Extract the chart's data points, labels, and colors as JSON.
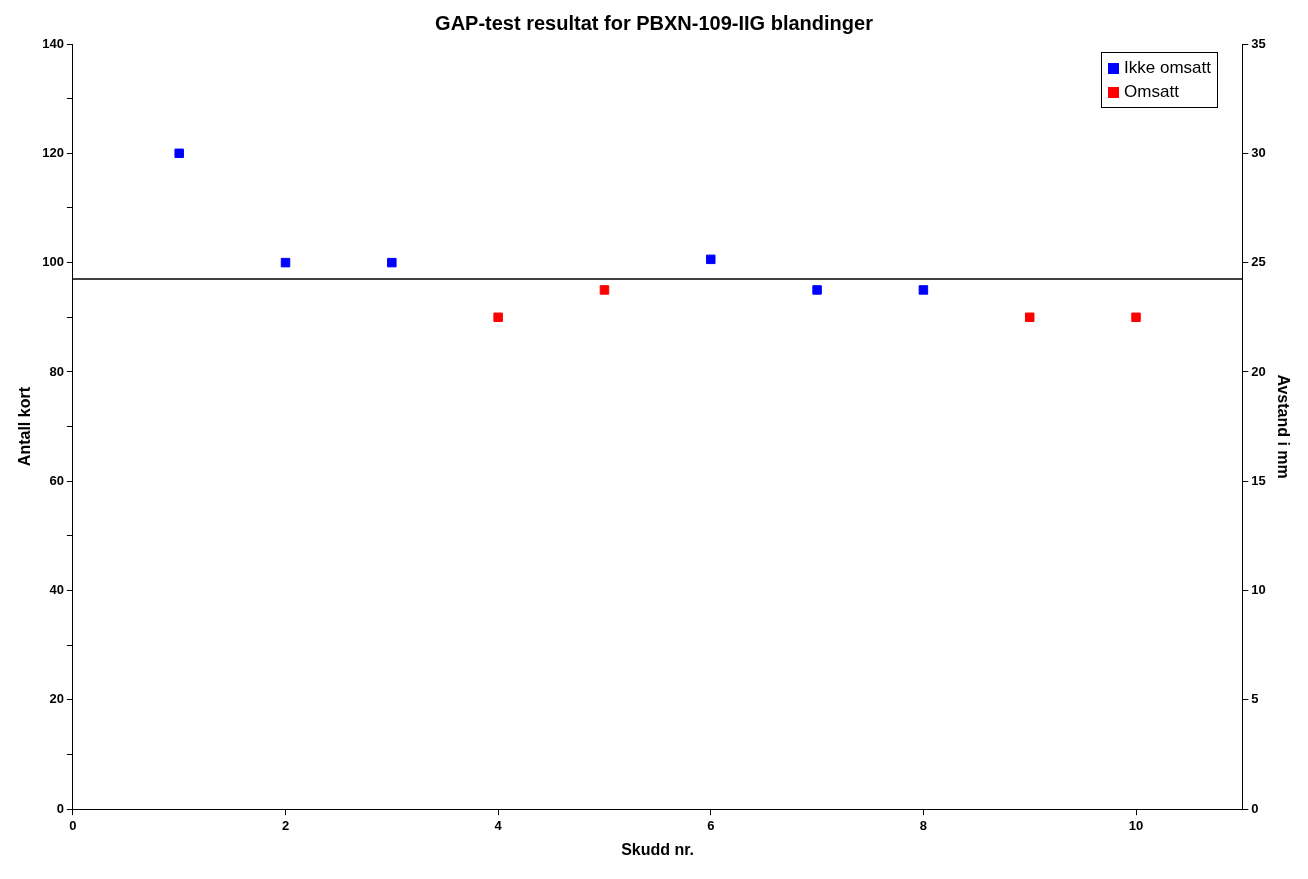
{
  "chart_data": {
    "type": "scatter",
    "title": "GAP-test resultat for PBXN-109-IIG blandinger",
    "xlabel": "Skudd nr.",
    "ylabel": "Antall kort",
    "y2label": "Avstand i mm",
    "xlim": [
      0,
      11
    ],
    "xticks": [
      0,
      2,
      4,
      6,
      8,
      10
    ],
    "ylim": [
      0,
      140
    ],
    "yticks": [
      0,
      {
        "value": 10,
        "label": null
      },
      20,
      {
        "value": 30,
        "label": null
      },
      40,
      {
        "value": 50,
        "label": null
      },
      60,
      {
        "value": 70,
        "label": null
      },
      80,
      {
        "value": 90,
        "label": null
      },
      100,
      {
        "value": 110,
        "label": null
      },
      120,
      {
        "value": 130,
        "label": null
      },
      140
    ],
    "y2lim": [
      0,
      35
    ],
    "y2ticks": [
      0,
      5,
      10,
      15,
      20,
      25,
      30,
      35
    ],
    "marker": "square",
    "legend": "top right",
    "grid": false,
    "ref_lines": [
      {
        "axis": "y",
        "value": 97,
        "color": "#000000"
      }
    ],
    "series": [
      {
        "name": "Ikke omsatt",
        "color": "#0000ff",
        "x": [
          1,
          2,
          3,
          6,
          7,
          8
        ],
        "values": [
          120,
          100,
          100,
          100.6,
          95,
          95
        ]
      },
      {
        "name": "Omsatt",
        "color": "#ff0000",
        "x": [
          4,
          5,
          9,
          10
        ],
        "values": [
          90,
          95,
          90,
          90
        ]
      }
    ]
  }
}
